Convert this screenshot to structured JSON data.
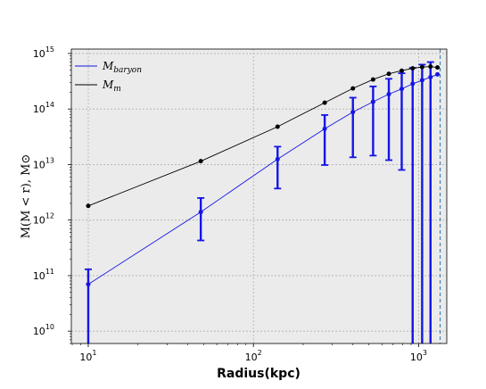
{
  "chart_data": {
    "type": "line",
    "title": "",
    "xlabel": "Radius(kpc)",
    "ylabel": "M(M < r), M⊙",
    "xscale": "log",
    "yscale": "log",
    "xlim": [
      7.9,
      1480
    ],
    "ylim": [
      6000000000.0,
      1200000000000000.0
    ],
    "grid": true,
    "legend_position": "top-left",
    "x_ticks": [
      {
        "value": 10,
        "base": "10",
        "exp": "1"
      },
      {
        "value": 100,
        "base": "10",
        "exp": "2"
      },
      {
        "value": 1000,
        "base": "10",
        "exp": "3"
      }
    ],
    "y_ticks": [
      {
        "value": 10000000000.0,
        "base": "10",
        "exp": "10"
      },
      {
        "value": 100000000000.0,
        "base": "10",
        "exp": "11"
      },
      {
        "value": 1000000000000.0,
        "base": "10",
        "exp": "12"
      },
      {
        "value": 10000000000000.0,
        "base": "10",
        "exp": "13"
      },
      {
        "value": 100000000000000.0,
        "base": "10",
        "exp": "14"
      },
      {
        "value": 1000000000000000.0,
        "base": "10",
        "exp": "15"
      }
    ],
    "vline": {
      "x": 1350,
      "color": "#1f77b4",
      "style": "dashed"
    },
    "series": [
      {
        "name": "M",
        "name_sub": "baryon",
        "color": "#1515e6",
        "errorbars": true,
        "points": [
          {
            "x": 10,
            "y": 70000000000.0,
            "lo": 6000000000.0,
            "hi": 130000000000.0
          },
          {
            "x": 48,
            "y": 1400000000000.0,
            "lo": 430000000000.0,
            "hi": 2500000000000.0
          },
          {
            "x": 140,
            "y": 12500000000000.0,
            "lo": 3700000000000.0,
            "hi": 21000000000000.0
          },
          {
            "x": 270,
            "y": 44000000000000.0,
            "lo": 9800000000000.0,
            "hi": 78000000000000.0
          },
          {
            "x": 400,
            "y": 88000000000000.0,
            "lo": 13500000000000.0,
            "hi": 160000000000000.0
          },
          {
            "x": 530,
            "y": 135000000000000.0,
            "lo": 14500000000000.0,
            "hi": 255000000000000.0
          },
          {
            "x": 660,
            "y": 185000000000000.0,
            "lo": 12000000000000.0,
            "hi": 350000000000000.0
          },
          {
            "x": 790,
            "y": 230000000000000.0,
            "lo": 8000000000000.0,
            "hi": 440000000000000.0
          },
          {
            "x": 920,
            "y": 285000000000000.0,
            "lo": 6000000000.0,
            "hi": 550000000000000.0
          },
          {
            "x": 1050,
            "y": 330000000000000.0,
            "lo": 6000000000.0,
            "hi": 630000000000000.0
          },
          {
            "x": 1180,
            "y": 375000000000000.0,
            "lo": 6000000000.0,
            "hi": 700000000000000.0
          },
          {
            "x": 1300,
            "y": 420000000000000.0
          }
        ]
      },
      {
        "name": "M",
        "name_sub": "m",
        "color": "#000000",
        "errorbars": false,
        "points": [
          {
            "x": 10,
            "y": 1800000000000.0
          },
          {
            "x": 48,
            "y": 11500000000000.0
          },
          {
            "x": 140,
            "y": 48000000000000.0
          },
          {
            "x": 270,
            "y": 130000000000000.0
          },
          {
            "x": 400,
            "y": 235000000000000.0
          },
          {
            "x": 530,
            "y": 340000000000000.0
          },
          {
            "x": 660,
            "y": 430000000000000.0
          },
          {
            "x": 790,
            "y": 490000000000000.0
          },
          {
            "x": 920,
            "y": 540000000000000.0
          },
          {
            "x": 1050,
            "y": 570000000000000.0
          },
          {
            "x": 1180,
            "y": 580000000000000.0
          },
          {
            "x": 1300,
            "y": 560000000000000.0
          }
        ]
      }
    ]
  }
}
